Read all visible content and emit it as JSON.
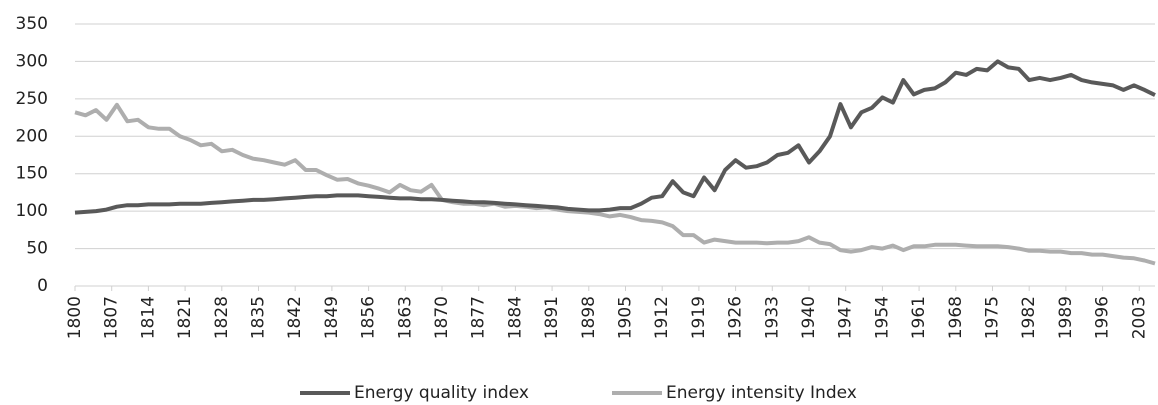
{
  "chart_data": {
    "type": "line",
    "x": [
      1800,
      1802,
      1804,
      1806,
      1808,
      1810,
      1812,
      1814,
      1816,
      1818,
      1820,
      1822,
      1824,
      1826,
      1828,
      1830,
      1832,
      1834,
      1836,
      1838,
      1840,
      1842,
      1844,
      1846,
      1848,
      1850,
      1852,
      1854,
      1856,
      1858,
      1860,
      1862,
      1864,
      1866,
      1868,
      1870,
      1872,
      1874,
      1876,
      1878,
      1880,
      1882,
      1884,
      1886,
      1888,
      1890,
      1892,
      1894,
      1896,
      1898,
      1900,
      1902,
      1904,
      1906,
      1908,
      1910,
      1912,
      1914,
      1916,
      1918,
      1920,
      1922,
      1924,
      1926,
      1928,
      1930,
      1932,
      1934,
      1936,
      1938,
      1940,
      1942,
      1944,
      1946,
      1948,
      1950,
      1952,
      1954,
      1956,
      1958,
      1960,
      1962,
      1964,
      1966,
      1968,
      1970,
      1972,
      1974,
      1976,
      1978,
      1980,
      1982,
      1984,
      1986,
      1988,
      1990,
      1992,
      1994,
      1996,
      1998,
      2000,
      2002,
      2004,
      2006
    ],
    "series": [
      {
        "name": "Energy quality index",
        "color": "#595959",
        "values": [
          98,
          99,
          100,
          102,
          106,
          108,
          108,
          109,
          109,
          109,
          110,
          110,
          110,
          111,
          112,
          113,
          114,
          115,
          115,
          116,
          117,
          118,
          119,
          120,
          120,
          121,
          121,
          121,
          120,
          119,
          118,
          117,
          117,
          116,
          116,
          115,
          114,
          113,
          112,
          112,
          111,
          110,
          109,
          108,
          107,
          106,
          105,
          103,
          102,
          101,
          101,
          102,
          104,
          104,
          110,
          118,
          120,
          140,
          125,
          120,
          145,
          128,
          155,
          168,
          158,
          160,
          165,
          175,
          178,
          188,
          165,
          180,
          200,
          243,
          212,
          232,
          238,
          252,
          245,
          275,
          256,
          262,
          264,
          272,
          285,
          282,
          290,
          288,
          300,
          292,
          290,
          275,
          278,
          275,
          278,
          282,
          275,
          272,
          270,
          268,
          262,
          268,
          262,
          255
        ]
      },
      {
        "name": "Energy intensity Index",
        "color": "#aeaeae",
        "values": [
          232,
          228,
          235,
          222,
          242,
          220,
          222,
          212,
          210,
          210,
          200,
          195,
          188,
          190,
          180,
          182,
          175,
          170,
          168,
          165,
          162,
          168,
          155,
          155,
          148,
          142,
          143,
          137,
          134,
          130,
          125,
          135,
          128,
          126,
          135,
          115,
          112,
          110,
          110,
          108,
          110,
          106,
          107,
          106,
          104,
          105,
          102,
          100,
          99,
          98,
          96,
          93,
          95,
          92,
          88,
          87,
          85,
          80,
          68,
          68,
          58,
          62,
          60,
          58,
          58,
          58,
          57,
          58,
          58,
          60,
          65,
          58,
          56,
          48,
          46,
          48,
          52,
          50,
          54,
          48,
          53,
          53,
          55,
          55,
          55,
          54,
          53,
          53,
          53,
          52,
          50,
          47,
          47,
          46,
          46,
          44,
          44,
          42,
          42,
          40,
          38,
          37,
          34,
          30
        ]
      }
    ],
    "xlim": [
      1800,
      2006
    ],
    "xticks": [
      1800,
      1807,
      1814,
      1821,
      1828,
      1835,
      1842,
      1849,
      1856,
      1863,
      1870,
      1877,
      1884,
      1891,
      1898,
      1905,
      1912,
      1919,
      1926,
      1933,
      1940,
      1947,
      1954,
      1961,
      1968,
      1975,
      1982,
      1989,
      1996,
      2003
    ],
    "ylim": [
      0,
      350
    ],
    "yticks": [
      0,
      50,
      100,
      150,
      200,
      250,
      300,
      350
    ],
    "grid": true,
    "legend": "bottom"
  }
}
